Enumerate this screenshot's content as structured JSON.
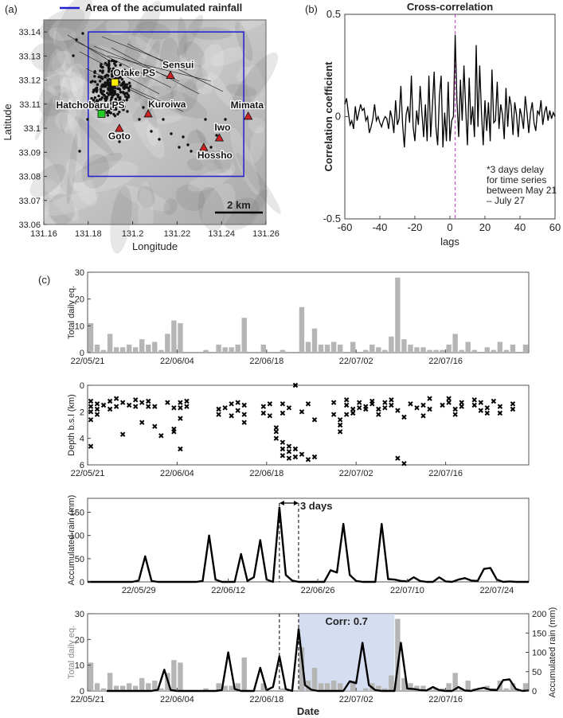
{
  "panel_labels": [
    "(a)",
    "(b)",
    "(c)"
  ],
  "map": {
    "legend_label": "Area of the accumulated rainfall",
    "legend_color": "#1f1fd0",
    "xlabel": "Longitude",
    "ylabel": "Latitude",
    "xticks": [
      "131.16",
      "131.18",
      "131.2",
      "131.22",
      "131.24",
      "131.26"
    ],
    "yticks": [
      "33.14",
      "33.13",
      "33.12",
      "33.11",
      "33.1",
      "33.09",
      "33.08",
      "33.07",
      "33.06"
    ],
    "scale_bar": "2 km",
    "places": [
      {
        "name": "Otake PS",
        "marker": "square",
        "color": "#ffee00",
        "lon": 131.192,
        "lat": 33.119
      },
      {
        "name": "Hatchobaru PS",
        "marker": "square",
        "color": "#22cc22",
        "lon": 131.186,
        "lat": 33.106
      },
      {
        "name": "Sensui",
        "marker": "triangle",
        "color": "#cc2222",
        "lon": 131.217,
        "lat": 33.122
      },
      {
        "name": "Kuroiwa",
        "marker": "triangle",
        "color": "#cc2222",
        "lon": 131.207,
        "lat": 33.106
      },
      {
        "name": "Goto",
        "marker": "triangle",
        "color": "#cc2222",
        "lon": 131.194,
        "lat": 33.1
      },
      {
        "name": "Mimata",
        "marker": "triangle",
        "color": "#cc2222",
        "lon": 131.252,
        "lat": 33.105
      },
      {
        "name": "Iwo",
        "marker": "triangle",
        "color": "#cc2222",
        "lon": 131.239,
        "lat": 33.096
      },
      {
        "name": "Hossho",
        "marker": "triangle",
        "color": "#cc2222",
        "lon": 131.232,
        "lat": 33.092
      }
    ]
  },
  "xcorr": {
    "title": "Cross-correlation",
    "xlabel": "lags",
    "ylabel": "Correlation coefficient",
    "xticks": [
      "-60",
      "-40",
      "-20",
      "0",
      "20",
      "40",
      "60"
    ],
    "yticks": [
      "0.5",
      "0",
      "-0.5"
    ],
    "annotation": [
      "*3 days delay",
      "for time series",
      "between May 21",
      "– July 27"
    ],
    "peak_lag": 3,
    "peak_color": "#cc33cc"
  },
  "axes_c": {
    "date_ticks_a": [
      "22/05/21",
      "22/06/04",
      "22/06/18",
      "22/07/02",
      "22/07/16"
    ],
    "date_ticks_b": [
      "22/05/29",
      "22/06/12",
      "22/06/26",
      "22/07/10",
      "22/07/24"
    ],
    "eq_label": "Total daily eq.",
    "eq_yticks": [
      "30",
      "20",
      "10",
      "0"
    ],
    "depth_label": "Depth b.s.l (km)",
    "depth_yticks": [
      "0",
      "2",
      "4",
      "6"
    ],
    "rain_label": "Accumulated rain (mm)",
    "rain_yticks": [
      "150",
      "100",
      "50",
      "0"
    ],
    "rain_right_yticks": [
      "200",
      "150",
      "100",
      "50",
      "0"
    ],
    "delay_label": "3 days",
    "corr_label": "Corr: 0.7",
    "xlabel": "Date",
    "highlight_color": "#c9d6ec"
  },
  "chart_data": [
    {
      "type": "scatter",
      "title": "",
      "xlabel": "Longitude",
      "ylabel": "Latitude",
      "xlim": [
        131.16,
        131.26
      ],
      "ylim": [
        33.06,
        33.145
      ],
      "rain_area": {
        "lon": [
          131.18,
          131.25
        ],
        "lat": [
          33.08,
          33.14
        ]
      },
      "cluster_center": {
        "lon": 131.19,
        "lat": 33.113
      }
    },
    {
      "type": "line",
      "title": "Cross-correlation",
      "xlabel": "lags",
      "ylabel": "Correlation coefficient",
      "xlim": [
        -60,
        60
      ],
      "ylim": [
        -0.5,
        0.5
      ],
      "x": [
        -60,
        -59,
        -58,
        -57,
        -56,
        -55,
        -54,
        -53,
        -52,
        -51,
        -50,
        -49,
        -48,
        -47,
        -46,
        -45,
        -44,
        -43,
        -42,
        -41,
        -40,
        -39,
        -38,
        -37,
        -36,
        -35,
        -34,
        -33,
        -32,
        -31,
        -30,
        -29,
        -28,
        -27,
        -26,
        -25,
        -24,
        -23,
        -22,
        -21,
        -20,
        -19,
        -18,
        -17,
        -16,
        -15,
        -14,
        -13,
        -12,
        -11,
        -10,
        -9,
        -8,
        -7,
        -6,
        -5,
        -4,
        -3,
        -2,
        -1,
        0,
        1,
        2,
        3,
        4,
        5,
        6,
        7,
        8,
        9,
        10,
        11,
        12,
        13,
        14,
        15,
        16,
        17,
        18,
        19,
        20,
        21,
        22,
        23,
        24,
        25,
        26,
        27,
        28,
        29,
        30,
        31,
        32,
        33,
        34,
        35,
        36,
        37,
        38,
        39,
        40,
        41,
        42,
        43,
        44,
        45,
        46,
        47,
        48,
        49,
        50,
        51,
        52,
        53,
        54,
        55,
        56,
        57,
        58,
        59,
        60
      ],
      "y": [
        0.06,
        0.09,
        0.02,
        -0.04,
        -0.02,
        -0.06,
        0.05,
        -0.02,
        0.02,
        0.06,
        0.03,
        0.04,
        -0.02,
        0.0,
        -0.08,
        -0.05,
        -0.01,
        0.06,
        -0.02,
        0.0,
        -0.03,
        -0.05,
        -0.02,
        0.0,
        -0.01,
        -0.06,
        0.03,
        -0.01,
        -0.08,
        0.08,
        -0.04,
        -0.01,
        0.15,
        -0.04,
        -0.15,
        0.01,
        0.05,
        -0.03,
        0.2,
        -0.05,
        -0.12,
        0.03,
        -0.04,
        0.15,
        0.02,
        -0.1,
        0.06,
        -0.12,
        0.2,
        -0.1,
        0.05,
        0.22,
        -0.05,
        -0.14,
        0.1,
        0.2,
        -0.15,
        0.02,
        -0.12,
        0.17,
        -0.12,
        -0.02,
        0.0,
        0.4,
        0.08,
        -0.1,
        0.18,
        -0.02,
        0.25,
        0.04,
        -0.14,
        0.19,
        -0.04,
        0.05,
        -0.1,
        0.35,
        -0.05,
        0.25,
        0.02,
        -0.14,
        0.08,
        -0.07,
        0.07,
        -0.12,
        0.23,
        -0.03,
        -0.02,
        0.17,
        -0.06,
        0.06,
        0.01,
        -0.11,
        0.14,
        -0.05,
        0.1,
        0.05,
        -0.09,
        0.07,
        0.01,
        -0.1,
        0.04,
        0.0,
        -0.06,
        0.1,
        0.02,
        -0.08,
        0.02,
        0.07,
        -0.03,
        -0.07,
        0.03,
        0.01,
        0.08,
        -0.04,
        0.02,
        0.05,
        -0.02,
        0.03,
        -0.01,
        0.02,
        0.0
      ]
    },
    {
      "type": "bar",
      "title": "",
      "xlabel": "",
      "ylabel": "Total daily eq.",
      "xlim": [
        0,
        69
      ],
      "ylim": [
        0,
        30
      ],
      "x": [
        0,
        1,
        2,
        3,
        4,
        5,
        6,
        7,
        8,
        9,
        10,
        11,
        12,
        13,
        14,
        15,
        16,
        17,
        18,
        19,
        20,
        21,
        22,
        23,
        24,
        25,
        26,
        27,
        28,
        29,
        30,
        31,
        32,
        33,
        34,
        35,
        36,
        37,
        38,
        39,
        40,
        41,
        42,
        43,
        44,
        45,
        46,
        47,
        48,
        49,
        50,
        51,
        52,
        53,
        54,
        55,
        56,
        57,
        58,
        59,
        60,
        61,
        62,
        63,
        64,
        65,
        66,
        67,
        68
      ],
      "values": [
        11,
        3,
        1,
        7,
        2,
        2,
        3,
        2,
        5,
        3,
        4,
        1,
        7,
        12,
        11,
        0,
        0,
        0,
        1,
        0,
        3,
        2,
        2,
        3,
        13,
        0,
        0,
        3,
        0,
        0,
        1,
        0,
        0,
        17,
        4,
        9,
        3,
        3,
        4,
        3,
        0,
        4,
        0,
        1,
        3,
        2,
        1,
        6,
        28,
        5,
        3,
        2,
        2,
        1,
        1,
        1,
        3,
        7,
        1,
        4,
        1,
        0,
        2,
        1,
        4,
        1,
        3,
        0,
        3
      ]
    },
    {
      "type": "scatter",
      "title": "",
      "xlabel": "",
      "ylabel": "Depth b.s.l (km)",
      "ylim": [
        6,
        0
      ],
      "x": [
        0,
        0,
        0,
        0,
        0,
        1,
        1,
        1,
        2,
        3,
        3,
        4,
        4,
        5,
        5,
        6,
        7,
        7,
        8,
        8,
        9,
        9,
        10,
        10,
        11,
        12,
        13,
        13,
        13,
        14,
        14,
        14,
        14,
        15,
        15,
        20,
        20,
        21,
        22,
        22,
        23,
        23,
        24,
        24,
        24,
        27,
        27,
        28,
        28,
        29,
        29,
        29,
        30,
        30,
        30,
        30,
        30,
        31,
        31,
        31,
        31,
        32,
        32,
        32,
        33,
        33,
        34,
        34,
        35,
        35,
        38,
        38,
        39,
        39,
        39,
        40,
        40,
        40,
        41,
        41,
        42,
        42,
        43,
        43,
        44,
        44,
        45,
        45,
        46,
        46,
        47,
        47,
        48,
        48,
        49,
        49,
        50,
        51,
        52,
        52,
        53,
        53,
        55,
        56,
        56,
        57,
        57,
        58,
        58,
        60,
        60,
        61,
        61,
        62,
        62,
        63,
        64,
        64,
        66,
        66
      ],
      "y": [
        1.2,
        1.6,
        2.0,
        2.6,
        4.6,
        1.4,
        1.8,
        2.2,
        1.5,
        1.2,
        1.8,
        1.0,
        1.6,
        1.3,
        3.7,
        1.5,
        1.1,
        1.6,
        1.3,
        2.8,
        1.2,
        1.6,
        1.6,
        3.1,
        3.8,
        1.3,
        1.7,
        3.3,
        3.5,
        1.3,
        1.7,
        2.5,
        4.8,
        1.2,
        1.6,
        1.8,
        2.2,
        1.7,
        1.4,
        2.3,
        1.3,
        1.9,
        1.5,
        2.2,
        2.8,
        1.6,
        2.1,
        1.4,
        2.3,
        3.2,
        3.5,
        4.0,
        1.4,
        2.1,
        4.3,
        4.8,
        5.3,
        1.7,
        4.6,
        5.0,
        5.5,
        0.0,
        4.8,
        5.4,
        2.0,
        5.2,
        1.4,
        5.6,
        2.6,
        5.4,
        1.3,
        2.2,
        2.6,
        3.0,
        3.5,
        1.1,
        1.5,
        2.2,
        1.8,
        2.1,
        1.3,
        1.7,
        1.6,
        1.8,
        1.4,
        1.2,
        1.8,
        2.2,
        1.3,
        1.7,
        1.1,
        1.5,
        5.5,
        1.9,
        5.9,
        2.4,
        1.4,
        1.7,
        2.3,
        1.5,
        1.0,
        1.8,
        1.5,
        1.0,
        1.3,
        1.8,
        2.2,
        1.3,
        1.6,
        1.1,
        1.5,
        1.3,
        1.9,
        1.7,
        2.1,
        1.2,
        1.6,
        2.1,
        1.4,
        1.8
      ]
    },
    {
      "type": "line",
      "title": "",
      "xlabel": "",
      "ylabel": "Accumulated rain (mm)",
      "xlim": [
        0,
        69
      ],
      "ylim": [
        0,
        180
      ],
      "x": [
        0,
        1,
        2,
        3,
        4,
        5,
        6,
        7,
        8,
        9,
        10,
        11,
        12,
        13,
        14,
        15,
        16,
        17,
        18,
        19,
        20,
        21,
        22,
        23,
        24,
        25,
        26,
        27,
        28,
        29,
        30,
        31,
        32,
        33,
        34,
        35,
        36,
        37,
        38,
        39,
        40,
        41,
        42,
        43,
        44,
        45,
        46,
        47,
        48,
        49,
        50,
        51,
        52,
        53,
        54,
        55,
        56,
        57,
        58,
        59,
        60,
        61,
        62,
        63,
        64,
        65,
        66,
        67,
        68,
        69
      ],
      "y": [
        0,
        0,
        0,
        0,
        0,
        0,
        0,
        0,
        3,
        55,
        2,
        0,
        0,
        0,
        0,
        0,
        0,
        0,
        2,
        100,
        5,
        0,
        0,
        0,
        60,
        2,
        10,
        90,
        5,
        0,
        160,
        15,
        3,
        0,
        0,
        0,
        0,
        0,
        25,
        20,
        125,
        15,
        2,
        0,
        0,
        0,
        125,
        6,
        5,
        2,
        1,
        10,
        2,
        0,
        0,
        10,
        1,
        0,
        5,
        8,
        3,
        2,
        28,
        30,
        5,
        0,
        1,
        0,
        0,
        0
      ]
    }
  ]
}
